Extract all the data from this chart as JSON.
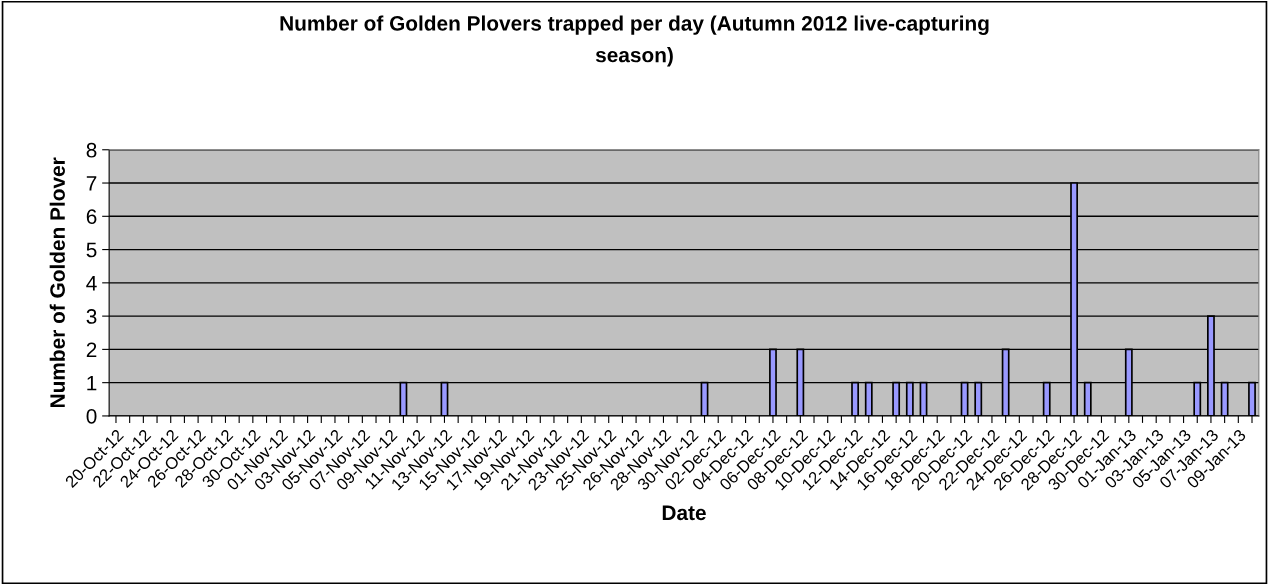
{
  "chart_data": {
    "type": "bar",
    "title": "Number of Golden Plovers trapped per day (Autumn 2012 live-capturing\nseason)",
    "xlabel": "Date",
    "ylabel": "Number of Golden Plover",
    "categories": [
      "20-Oct-12",
      null,
      "22-Oct-12",
      null,
      "24-Oct-12",
      null,
      "26-Oct-12",
      null,
      "28-Oct-12",
      null,
      "30-Oct-12",
      null,
      "01-Nov-12",
      null,
      "03-Nov-12",
      null,
      "05-Nov-12",
      null,
      "07-Nov-12",
      null,
      "09-Nov-12",
      null,
      "11-Nov-12",
      null,
      "13-Nov-12",
      null,
      "15-Nov-12",
      null,
      "17-Nov-12",
      null,
      "19-Nov-12",
      null,
      "21-Nov-12",
      null,
      "23-Nov-12",
      null,
      "25-Nov-12",
      null,
      "26-Nov-12",
      null,
      "28-Nov-12",
      null,
      "30-Nov-12",
      null,
      "02-Dec-12",
      null,
      "04-Dec-12",
      null,
      "06-Dec-12",
      null,
      "08-Dec-12",
      null,
      "10-Dec-12",
      null,
      "12-Dec-12",
      null,
      "14-Dec-12",
      null,
      "16-Dec-12",
      null,
      "18-Dec-12",
      null,
      "20-Dec-12",
      null,
      "22-Dec-12",
      null,
      "24-Dec-12",
      null,
      "26-Dec-12",
      null,
      "28-Dec-12",
      null,
      "30-Dec-12",
      null,
      "01-Jan-13",
      null,
      "03-Jan-13",
      null,
      "05-Jan-13",
      null,
      "07-Jan-13",
      null,
      "09-Jan-13",
      null
    ],
    "values": [
      0,
      0,
      0,
      0,
      0,
      0,
      0,
      0,
      0,
      0,
      0,
      0,
      0,
      0,
      0,
      0,
      0,
      0,
      0,
      0,
      0,
      1,
      0,
      0,
      1,
      0,
      0,
      0,
      0,
      0,
      0,
      0,
      0,
      0,
      0,
      0,
      0,
      0,
      0,
      0,
      0,
      0,
      0,
      1,
      0,
      0,
      0,
      0,
      2,
      0,
      2,
      0,
      0,
      0,
      1,
      1,
      0,
      1,
      1,
      1,
      0,
      0,
      1,
      1,
      0,
      2,
      0,
      0,
      1,
      0,
      7,
      1,
      0,
      0,
      2,
      0,
      0,
      0,
      0,
      1,
      3,
      1,
      0,
      1
    ],
    "color": "#9999ff",
    "ylim": [
      0,
      8
    ],
    "yticks": [
      0,
      1,
      2,
      3,
      4,
      5,
      6,
      7,
      8
    ],
    "grid": "y"
  }
}
